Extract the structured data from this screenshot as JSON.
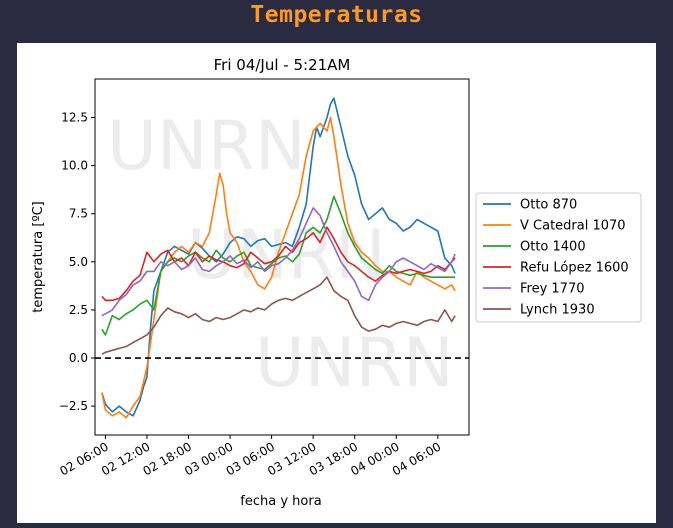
{
  "page": {
    "title": "Temperaturas"
  },
  "watermark": {
    "text": "UNRN"
  },
  "chart_data": {
    "type": "line",
    "title": "Fri 04/Jul - 5:21AM",
    "xlabel": "fecha y hora",
    "ylabel": "temperatura [ºC]",
    "x_unit": "hours since 02 00:00",
    "xlim": [
      4.5,
      58.5
    ],
    "ylim": [
      -4,
      14.5
    ],
    "yticks": [
      -2.5,
      0.0,
      2.5,
      5.0,
      7.5,
      10.0,
      12.5
    ],
    "ytick_labels": [
      "−2.5",
      "0.0",
      "2.5",
      "5.0",
      "7.5",
      "10.0",
      "12.5"
    ],
    "xticks": [
      6,
      12,
      18,
      24,
      30,
      36,
      42,
      48,
      54
    ],
    "xtick_labels": [
      "02 06:00",
      "02 12:00",
      "02 18:00",
      "03 00:00",
      "03 06:00",
      "03 12:00",
      "03 18:00",
      "04 00:00",
      "04 06:00"
    ],
    "zero_line": 0,
    "grid": false,
    "legend_position": "right",
    "series": [
      {
        "name": "Otto 870",
        "color": "#1f77b4",
        "x": [
          5.5,
          6,
          7,
          8,
          9,
          10,
          11,
          11.5,
          12,
          12.5,
          13,
          14,
          15,
          16,
          17,
          18,
          19,
          20,
          21,
          22,
          23,
          24,
          25,
          26,
          27,
          28,
          29,
          30,
          31,
          32,
          33,
          34,
          35,
          35.5,
          36,
          36.5,
          37,
          38,
          38.5,
          39,
          40,
          41,
          42,
          43,
          44,
          45,
          46,
          47,
          48,
          49,
          50,
          51,
          52,
          53,
          54,
          55,
          56,
          56.5
        ],
        "y": [
          -1.8,
          -2.4,
          -2.8,
          -2.5,
          -2.8,
          -3.0,
          -2.2,
          -1.5,
          -1.0,
          1.5,
          3.5,
          4.5,
          5.5,
          5.8,
          5.6,
          5.4,
          6.0,
          5.7,
          5.3,
          5.0,
          5.4,
          6.0,
          6.3,
          6.2,
          5.8,
          6.1,
          6.2,
          5.8,
          5.9,
          6.0,
          5.8,
          6.8,
          8.0,
          9.5,
          11.0,
          12.0,
          11.5,
          12.5,
          13.2,
          13.5,
          12.0,
          10.5,
          9.5,
          8.0,
          7.2,
          7.5,
          7.8,
          7.2,
          7.0,
          6.6,
          6.8,
          7.2,
          7.0,
          6.8,
          6.6,
          5.2,
          4.8,
          4.4
        ]
      },
      {
        "name": "V Catedral 1070",
        "color": "#ff7f0e",
        "x": [
          5.5,
          6,
          7,
          8,
          9,
          10,
          11,
          12,
          13,
          14,
          15,
          16,
          17,
          18,
          19,
          20,
          21,
          22,
          22.5,
          23,
          23.5,
          24,
          25,
          26,
          27,
          28,
          29,
          30,
          31,
          32,
          33,
          34,
          35,
          36,
          37,
          38,
          38.5,
          39,
          40,
          41,
          42,
          43,
          44,
          45,
          46,
          47,
          48,
          49,
          50,
          51,
          52,
          53,
          54,
          55,
          56,
          56.5
        ],
        "y": [
          -1.8,
          -2.7,
          -3.0,
          -2.8,
          -3.1,
          -2.5,
          -2.0,
          -0.5,
          2.0,
          4.5,
          5.0,
          5.5,
          5.8,
          5.5,
          6.0,
          5.8,
          6.5,
          8.5,
          9.6,
          9.0,
          7.5,
          6.5,
          6.0,
          5.0,
          4.5,
          3.8,
          3.6,
          4.2,
          5.5,
          6.5,
          7.5,
          8.5,
          10.5,
          11.8,
          12.2,
          11.8,
          12.5,
          11.5,
          9.0,
          7.0,
          6.0,
          5.5,
          5.2,
          4.8,
          4.5,
          4.5,
          4.2,
          4.0,
          3.8,
          4.5,
          4.2,
          4.0,
          3.8,
          3.6,
          3.8,
          3.5
        ]
      },
      {
        "name": "Otto 1400",
        "color": "#2ca02c",
        "x": [
          5.5,
          6,
          7,
          8,
          9,
          10,
          11,
          12,
          13,
          14,
          15,
          16,
          17,
          18,
          19,
          20,
          21,
          22,
          23,
          24,
          25,
          26,
          27,
          28,
          29,
          30,
          31,
          32,
          33,
          34,
          35,
          36,
          37,
          38,
          39,
          40,
          41,
          42,
          43,
          44,
          45,
          46,
          47,
          48,
          49,
          50,
          51,
          52,
          53,
          54,
          55,
          56,
          56.5
        ],
        "y": [
          1.5,
          1.2,
          2.2,
          2.0,
          2.3,
          2.5,
          2.8,
          3.0,
          2.5,
          4.5,
          5.0,
          5.2,
          5.0,
          5.3,
          5.5,
          5.2,
          5.0,
          5.6,
          5.2,
          5.0,
          5.3,
          5.5,
          4.8,
          4.7,
          4.6,
          4.9,
          5.2,
          5.3,
          5.0,
          5.4,
          6.5,
          6.8,
          6.5,
          7.2,
          8.4,
          7.5,
          6.5,
          5.8,
          5.2,
          4.9,
          4.6,
          4.4,
          4.8,
          4.5,
          4.4,
          4.3,
          4.4,
          4.3,
          4.2,
          4.2,
          4.2,
          4.2,
          4.2
        ]
      },
      {
        "name": "Refu López 1600",
        "color": "#d62728",
        "x": [
          5.5,
          6,
          7,
          8,
          9,
          10,
          11,
          12,
          13,
          14,
          15,
          16,
          17,
          18,
          19,
          20,
          21,
          22,
          23,
          24,
          25,
          26,
          27,
          28,
          29,
          30,
          31,
          32,
          33,
          34,
          35,
          36,
          37,
          38,
          39,
          40,
          41,
          42,
          43,
          44,
          45,
          46,
          47,
          48,
          49,
          50,
          51,
          52,
          53,
          54,
          55,
          56,
          56.5
        ],
        "y": [
          3.2,
          3.0,
          3.0,
          3.1,
          3.5,
          4.0,
          4.3,
          5.5,
          5.0,
          5.4,
          5.6,
          5.0,
          5.2,
          4.8,
          5.5,
          5.0,
          5.3,
          5.1,
          5.0,
          4.8,
          4.7,
          4.9,
          5.5,
          5.2,
          4.9,
          5.0,
          5.3,
          5.8,
          5.5,
          6.0,
          6.2,
          6.5,
          6.0,
          6.8,
          6.2,
          5.5,
          5.0,
          4.8,
          4.5,
          4.2,
          4.0,
          4.3,
          4.5,
          4.4,
          4.5,
          4.6,
          4.5,
          4.4,
          4.5,
          4.8,
          4.6,
          5.0,
          5.2
        ]
      },
      {
        "name": "Frey 1770",
        "color": "#9467bd",
        "x": [
          5.5,
          6,
          7,
          8,
          9,
          10,
          11,
          12,
          13,
          14,
          15,
          16,
          17,
          18,
          19,
          20,
          21,
          22,
          23,
          24,
          25,
          26,
          27,
          28,
          29,
          30,
          31,
          32,
          33,
          34,
          35,
          36,
          37,
          38,
          39,
          40,
          41,
          42,
          43,
          44,
          45,
          46,
          47,
          48,
          49,
          50,
          51,
          52,
          53,
          54,
          55,
          56,
          56.5
        ],
        "y": [
          2.2,
          2.3,
          2.5,
          3.0,
          3.3,
          3.8,
          4.0,
          4.5,
          4.5,
          5.0,
          4.8,
          5.0,
          4.6,
          4.8,
          5.2,
          4.6,
          4.5,
          4.8,
          5.0,
          5.3,
          4.9,
          5.1,
          4.7,
          5.0,
          4.5,
          4.8,
          4.9,
          5.2,
          5.6,
          6.2,
          7.0,
          7.8,
          7.4,
          6.5,
          5.8,
          5.0,
          4.5,
          4.0,
          3.2,
          3.0,
          3.8,
          4.2,
          4.5,
          5.0,
          5.2,
          5.0,
          4.8,
          4.6,
          4.9,
          4.7,
          4.5,
          5.0,
          5.4
        ]
      },
      {
        "name": "Lynch 1930",
        "color": "#8c564b",
        "x": [
          5.5,
          6,
          7,
          8,
          9,
          10,
          11,
          12,
          13,
          14,
          15,
          16,
          17,
          18,
          19,
          20,
          21,
          22,
          23,
          24,
          25,
          26,
          27,
          28,
          29,
          30,
          31,
          32,
          33,
          34,
          35,
          36,
          37,
          38,
          39,
          40,
          41,
          42,
          43,
          44,
          45,
          46,
          47,
          48,
          49,
          50,
          51,
          52,
          53,
          54,
          55,
          56,
          56.5
        ],
        "y": [
          0.2,
          0.3,
          0.4,
          0.5,
          0.6,
          0.8,
          1.0,
          1.2,
          1.6,
          2.2,
          2.6,
          2.4,
          2.3,
          2.1,
          2.3,
          2.0,
          1.9,
          2.1,
          2.0,
          2.1,
          2.3,
          2.5,
          2.4,
          2.6,
          2.5,
          2.8,
          3.0,
          3.1,
          3.0,
          3.2,
          3.4,
          3.6,
          3.8,
          4.2,
          3.5,
          3.2,
          3.0,
          2.2,
          1.6,
          1.4,
          1.5,
          1.7,
          1.6,
          1.8,
          1.9,
          1.8,
          1.7,
          1.9,
          2.0,
          1.9,
          2.5,
          1.9,
          2.2
        ]
      }
    ]
  }
}
